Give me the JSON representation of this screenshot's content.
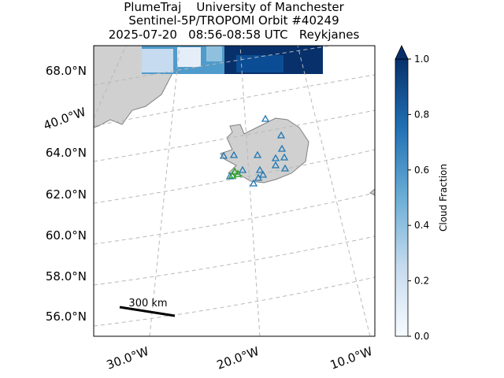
{
  "title": [
    "PlumeTraj    University of Manchester",
    "Sentinel-5P/TROPOMI Orbit #40249",
    "2025-07-20   08:56-08:58 UTC   Reykjanes"
  ],
  "map": {
    "lat_labels": [
      "68.0°N",
      "64.0°N",
      "62.0°N",
      "60.0°N",
      "58.0°N",
      "56.0°N"
    ],
    "lon_labels": [
      "40.0°W",
      "30.0°W",
      "20.0°W",
      "10.0°W"
    ],
    "scale_bar": "300 km"
  },
  "colorbar": {
    "label": "Cloud Fraction",
    "lim": [
      0,
      1
    ],
    "ticks": [
      {
        "value": 0,
        "label": "0.0"
      },
      {
        "value": 0.2,
        "label": "0.2"
      },
      {
        "value": 0.4,
        "label": "0.4"
      },
      {
        "value": 0.6,
        "label": "0.6"
      },
      {
        "value": 0.8,
        "label": "0.8"
      },
      {
        "value": 1,
        "label": "1.0"
      }
    ]
  }
}
